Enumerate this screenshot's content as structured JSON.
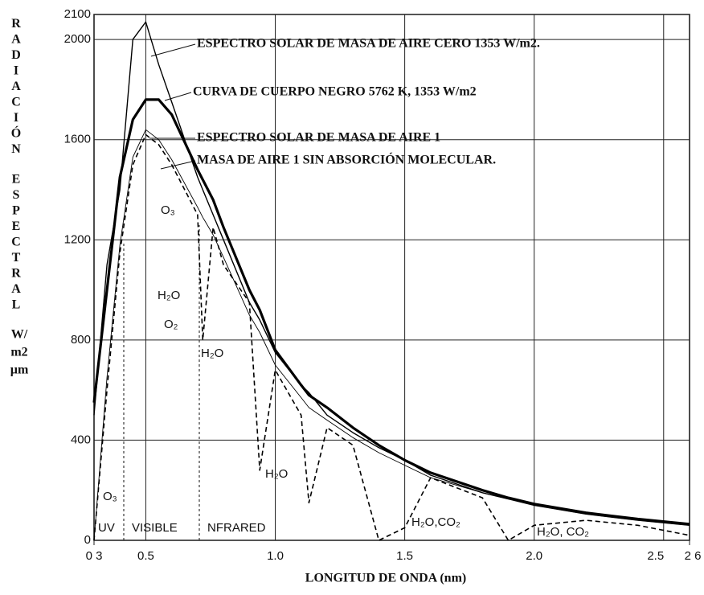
{
  "chart_data": {
    "type": "line",
    "xlabel": "LONGITUD DE ONDA (nm)",
    "ylabel": [
      "RADIACIÓN",
      "ESPECTRAL",
      "W/",
      "m2",
      "µm"
    ],
    "x": [
      0.3,
      0.35,
      0.4,
      0.45,
      0.5,
      0.55,
      0.6,
      0.7,
      0.72,
      0.76,
      0.8,
      0.9,
      0.94,
      1.0,
      1.1,
      1.13,
      1.2,
      1.3,
      1.4,
      1.5,
      1.6,
      1.8,
      1.9,
      2.0,
      2.2,
      2.4,
      2.6
    ],
    "series": [
      {
        "name": "ESPECTRO SOLAR DE MASA DE AIRE CERO 1353 W/m2.",
        "color": "#000000",
        "style": "solid",
        "values": [
          500,
          1100,
          1400,
          2000,
          2070,
          1900,
          1750,
          1450,
          1400,
          1300,
          1200,
          950,
          880,
          750,
          620,
          590,
          500,
          430,
          370,
          320,
          260,
          190,
          165,
          140,
          105,
          80,
          60
        ]
      },
      {
        "name": "CURVA DE CUERPO NEGRO 5762 K, 1353 W/m2",
        "color": "#000000",
        "style": "bold",
        "values": [
          550,
          1000,
          1450,
          1680,
          1760,
          1760,
          1700,
          1480,
          1440,
          1360,
          1250,
          1000,
          920,
          760,
          620,
          580,
          530,
          450,
          380,
          320,
          270,
          200,
          170,
          145,
          110,
          85,
          65
        ]
      },
      {
        "name": "ESPECTRO SOLAR DE MASA DE AIRE 1",
        "color": "#000000",
        "style": "dashed",
        "values": [
          0,
          600,
          1150,
          1500,
          1620,
          1580,
          1500,
          1300,
          800,
          1250,
          1100,
          950,
          280,
          680,
          500,
          150,
          450,
          380,
          0,
          50,
          250,
          170,
          0,
          60,
          80,
          60,
          20
        ]
      },
      {
        "name": "MASA DE AIRE 1 SIN ABSORCIÓN MOLECULAR.",
        "color": "#000000",
        "style": "thin",
        "values": [
          0,
          650,
          1180,
          1530,
          1640,
          1600,
          1520,
          1330,
          1290,
          1220,
          1130,
          900,
          830,
          700,
          570,
          530,
          480,
          410,
          350,
          300,
          250,
          190,
          165,
          140,
          105,
          80,
          60
        ]
      }
    ],
    "annotations": [
      "O₃",
      "O₃",
      "H₂O",
      "O₂",
      "H₂O",
      "H₂O",
      "H₂O,CO₂",
      "H₂O, CO₂",
      "UV",
      "VISIBLE",
      "NFRARED"
    ],
    "xlim": [
      0.3,
      2.6
    ],
    "ylim": [
      0,
      2100
    ],
    "xticks": [
      {
        "value": 0.3,
        "label": "0 3"
      },
      0.5,
      {
        "value": 1,
        "label": "1.0"
      },
      1.5,
      {
        "value": 2,
        "label": "2.0"
      },
      2.5,
      {
        "value": 2.6,
        "label": "2 6"
      }
    ],
    "yticks": [
      0,
      400,
      800,
      1200,
      1600,
      2000,
      2100
    ],
    "grid": true
  }
}
